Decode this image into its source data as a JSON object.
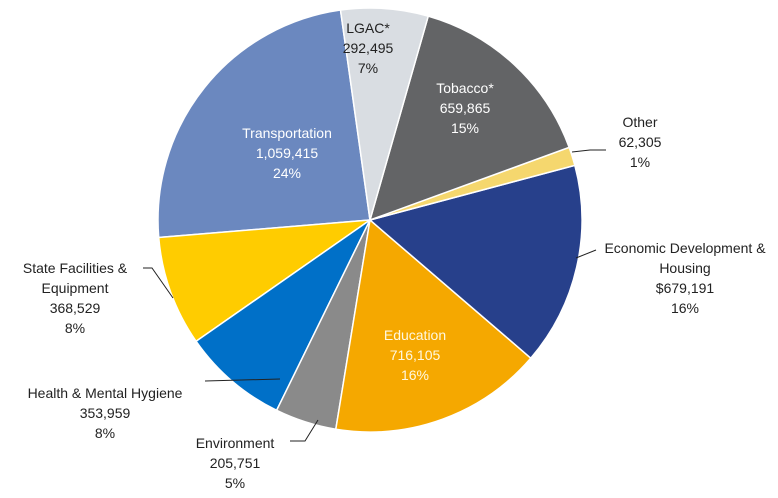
{
  "chart_data": {
    "type": "pie",
    "categories": [
      "LGAC*",
      "Tobacco*",
      "Other",
      "Economic Development & Housing",
      "Education",
      "Environment",
      "Health & Mental Hygiene",
      "State Facilities & Equipment",
      "Transportation"
    ],
    "values": [
      292495,
      659865,
      62305,
      679191,
      716105,
      205751,
      353959,
      368529,
      1059415
    ],
    "value_labels": [
      "292,495",
      "659,865",
      "62,305",
      "$679,191",
      "716,105",
      "205,751",
      "353,959",
      "368,529",
      "1,059,415"
    ],
    "percent_labels": [
      "7%",
      "15%",
      "1%",
      "16%",
      "16%",
      "5%",
      "8%",
      "8%",
      "24%"
    ],
    "colors": [
      "#d9dde2",
      "#636466",
      "#f5d76e",
      "#27408b",
      "#f5a800",
      "#8a8a8a",
      "#0070c8",
      "#ffcc00",
      "#6b88bf"
    ]
  }
}
